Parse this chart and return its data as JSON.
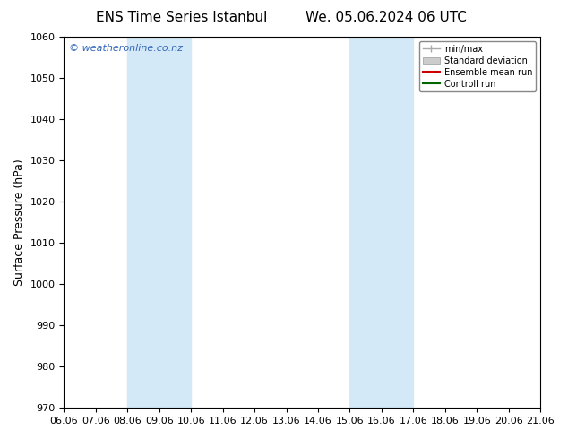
{
  "title_left": "ENS Time Series Istanbul",
  "title_right": "We. 05.06.2024 06 UTC",
  "ylabel": "Surface Pressure (hPa)",
  "ylim": [
    970,
    1060
  ],
  "yticks": [
    970,
    980,
    990,
    1000,
    1010,
    1020,
    1030,
    1040,
    1050,
    1060
  ],
  "xtick_labels": [
    "06.06",
    "07.06",
    "08.06",
    "09.06",
    "10.06",
    "11.06",
    "12.06",
    "13.06",
    "14.06",
    "15.06",
    "16.06",
    "17.06",
    "18.06",
    "19.06",
    "20.06",
    "21.06"
  ],
  "xtick_positions": [
    0,
    1,
    2,
    3,
    4,
    5,
    6,
    7,
    8,
    9,
    10,
    11,
    12,
    13,
    14,
    15
  ],
  "shaded_regions": [
    {
      "xmin": 2,
      "xmax": 4,
      "color": "#d4e9f7",
      "alpha": 1.0
    },
    {
      "xmin": 9,
      "xmax": 11,
      "color": "#d4e9f7",
      "alpha": 1.0
    }
  ],
  "watermark_text": "© weatheronline.co.nz",
  "watermark_color": "#3366bb",
  "background_color": "#ffffff",
  "legend_entries": [
    {
      "label": "min/max",
      "color": "#aaaaaa",
      "lw": 1.0,
      "style": "errorbar"
    },
    {
      "label": "Standard deviation",
      "color": "#cccccc",
      "lw": 5,
      "style": "patch"
    },
    {
      "label": "Ensemble mean run",
      "color": "#cc0000",
      "lw": 1.5,
      "style": "line"
    },
    {
      "label": "Controll run",
      "color": "#006600",
      "lw": 1.5,
      "style": "line"
    }
  ],
  "title_fontsize": 11,
  "axis_label_fontsize": 9,
  "tick_fontsize": 8
}
